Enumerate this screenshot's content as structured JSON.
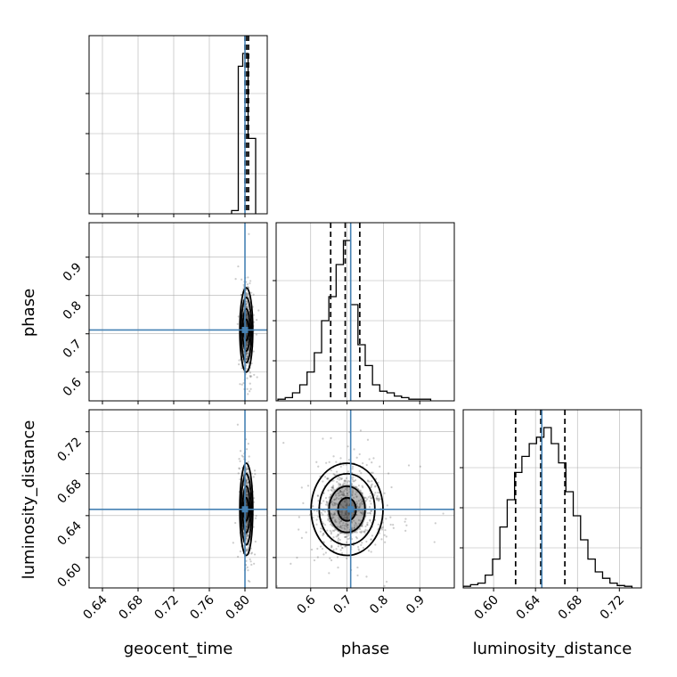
{
  "chart_data": {
    "type": "corner",
    "parameters": [
      "geocent_time",
      "phase",
      "luminosity_distance"
    ],
    "truths": {
      "geocent_time": 0.8,
      "phase": 0.71,
      "luminosity_distance": 0.646
    },
    "colors": {
      "truth": "#4682b4",
      "hist": "#000000",
      "grid": "#b0b0b0",
      "scatter": "#555555"
    },
    "panels": [
      {
        "id": "hist-geocent_time",
        "type": "histogram",
        "param": "geocent_time",
        "xlim": [
          0.625,
          0.825
        ],
        "xticks": [
          0.64,
          0.68,
          0.72,
          0.76,
          0.8
        ],
        "quantile_lines": [
          0.8,
          0.802,
          0.804
        ],
        "bins": [
          0.785,
          0.7925,
          0.7975,
          0.8035,
          0.812
        ],
        "counts": [
          0.02,
          0.92,
          1.0,
          0.47
        ]
      },
      {
        "id": "scatter-geocent_time-phase",
        "type": "scatter2d",
        "x": "geocent_time",
        "y": "phase",
        "xlim": [
          0.625,
          0.825
        ],
        "ylim": [
          0.525,
          0.99
        ],
        "xticks": [
          0.64,
          0.68,
          0.72,
          0.76,
          0.8
        ],
        "yticks": [
          "0.6",
          "0.7",
          "0.8",
          "0.9"
        ],
        "center": [
          0.8015,
          0.71
        ],
        "spread": [
          0.0025,
          0.05
        ]
      },
      {
        "id": "hist-phase",
        "type": "histogram",
        "param": "phase",
        "xlim": [
          0.505,
          0.995
        ],
        "xticks": [
          0.6,
          0.7,
          0.8,
          0.9
        ],
        "quantile_lines": [
          0.655,
          0.695,
          0.735
        ],
        "bins": [
          0.51,
          0.53,
          0.55,
          0.57,
          0.59,
          0.61,
          0.63,
          0.65,
          0.67,
          0.69,
          0.71,
          0.73,
          0.75,
          0.77,
          0.79,
          0.81,
          0.83,
          0.85,
          0.87,
          0.89,
          0.91,
          0.93
        ],
        "counts": [
          0.01,
          0.02,
          0.05,
          0.1,
          0.18,
          0.3,
          0.5,
          0.65,
          0.85,
          1.0,
          0.6,
          0.35,
          0.22,
          0.1,
          0.06,
          0.05,
          0.03,
          0.02,
          0.01,
          0.01,
          0.01
        ]
      },
      {
        "id": "scatter-geocent_time-luminosity_distance",
        "type": "scatter2d",
        "x": "geocent_time",
        "y": "luminosity_distance",
        "xlim": [
          0.625,
          0.825
        ],
        "ylim": [
          0.571,
          0.741
        ],
        "xticks": [
          0.64,
          0.68,
          0.72,
          0.76,
          0.8
        ],
        "yticks": [
          "0.60",
          "0.64",
          "0.68",
          "0.72"
        ],
        "center": [
          0.8015,
          0.646
        ],
        "spread": [
          0.0025,
          0.02
        ]
      },
      {
        "id": "scatter-phase-luminosity_distance",
        "type": "scatter2d",
        "x": "phase",
        "y": "luminosity_distance",
        "xlim": [
          0.505,
          0.995
        ],
        "ylim": [
          0.571,
          0.741
        ],
        "xticks": [
          0.6,
          0.7,
          0.8,
          0.9
        ],
        "yticks": [
          "0.60",
          "0.64",
          "0.68",
          "0.72"
        ],
        "center": [
          0.7,
          0.646
        ],
        "spread": [
          0.045,
          0.02
        ]
      },
      {
        "id": "hist-luminosity_distance",
        "type": "histogram",
        "param": "luminosity_distance",
        "xlim": [
          0.571,
          0.741
        ],
        "xticks": [
          0.6,
          0.64,
          0.68,
          0.72
        ],
        "quantile_lines": [
          0.621,
          0.645,
          0.668
        ],
        "bins": [
          0.571,
          0.578,
          0.585,
          0.592,
          0.599,
          0.606,
          0.613,
          0.62,
          0.627,
          0.634,
          0.641,
          0.648,
          0.655,
          0.662,
          0.669,
          0.676,
          0.683,
          0.69,
          0.697,
          0.704,
          0.711,
          0.718,
          0.725,
          0.732
        ],
        "counts": [
          0.01,
          0.02,
          0.03,
          0.08,
          0.18,
          0.38,
          0.55,
          0.72,
          0.82,
          0.9,
          0.94,
          1.0,
          0.9,
          0.78,
          0.6,
          0.45,
          0.3,
          0.18,
          0.1,
          0.06,
          0.03,
          0.015,
          0.01
        ]
      }
    ],
    "xlabels": [
      "geocent_time",
      "phase",
      "luminosity_distance"
    ],
    "ylabels": [
      "phase",
      "luminosity_distance"
    ]
  }
}
